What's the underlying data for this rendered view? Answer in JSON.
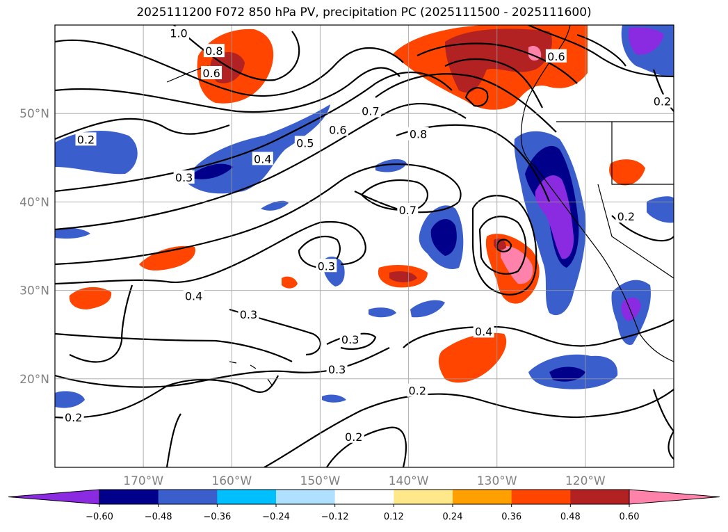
{
  "chart_data": {
    "type": "map",
    "title": "2025111200 F072 850 hPa PV, precipitation PC (2025111500 - 2025111600)",
    "xlim": [
      -180,
      -110
    ],
    "ylim": [
      10,
      60
    ],
    "lon_ticks": [
      {
        "value": -170,
        "label": "170°W"
      },
      {
        "value": -160,
        "label": "160°W"
      },
      {
        "value": -150,
        "label": "150°W"
      },
      {
        "value": -140,
        "label": "140°W"
      },
      {
        "value": -130,
        "label": "130°W"
      },
      {
        "value": -120,
        "label": "120°W"
      }
    ],
    "lat_ticks": [
      {
        "value": 20,
        "label": "20°N"
      },
      {
        "value": 30,
        "label": "30°N"
      },
      {
        "value": 40,
        "label": "40°N"
      },
      {
        "value": 50,
        "label": "50°N"
      }
    ],
    "grid": true,
    "colorbar": {
      "orientation": "horizontal",
      "extend": "both",
      "levels": [
        -0.6,
        -0.48,
        -0.36,
        -0.24,
        -0.12,
        0.12,
        0.24,
        0.36,
        0.48,
        0.6
      ],
      "tick_labels": [
        "−0.60",
        "−0.48",
        "−0.36",
        "−0.24",
        "−0.12",
        "0.12",
        "0.24",
        "0.36",
        "0.48",
        "0.60"
      ],
      "colors": [
        "#8a2be2",
        "#00008b",
        "#3a5fcd",
        "#00bfff",
        "#b0e0ff",
        "#ffffff",
        "#ffe88a",
        "#ff9f00",
        "#ff4500",
        "#b22222",
        "#ff82ab"
      ]
    },
    "contour_labels": [
      {
        "text": "1.0",
        "lon": -166,
        "lat": 59
      },
      {
        "text": "0.8",
        "lon": -162,
        "lat": 57
      },
      {
        "text": "0.6",
        "lon": -162.3,
        "lat": 54.5
      },
      {
        "text": "0.6",
        "lon": -123.3,
        "lat": 56.4
      },
      {
        "text": "0.2",
        "lon": -111.3,
        "lat": 51.3
      },
      {
        "text": "0.2",
        "lon": -176.5,
        "lat": 47
      },
      {
        "text": "0.4",
        "lon": -156.5,
        "lat": 44.8
      },
      {
        "text": "0.5",
        "lon": -151.7,
        "lat": 46.6
      },
      {
        "text": "0.6",
        "lon": -148,
        "lat": 48.1
      },
      {
        "text": "0.7",
        "lon": -144.3,
        "lat": 50.2
      },
      {
        "text": "0.8",
        "lon": -138.9,
        "lat": 47.6
      },
      {
        "text": "0.3",
        "lon": -165.4,
        "lat": 42.7
      },
      {
        "text": "0.7",
        "lon": -140.1,
        "lat": 39
      },
      {
        "text": "0.3",
        "lon": -149.3,
        "lat": 32.7
      },
      {
        "text": "0.4",
        "lon": -164.3,
        "lat": 29.3
      },
      {
        "text": "0.2",
        "lon": -115.4,
        "lat": 38.3
      },
      {
        "text": "0.3",
        "lon": -158.1,
        "lat": 27.2
      },
      {
        "text": "0.3",
        "lon": -146.6,
        "lat": 24.4
      },
      {
        "text": "0.4",
        "lon": -131.5,
        "lat": 25.3
      },
      {
        "text": "0.3",
        "lon": -148.1,
        "lat": 21
      },
      {
        "text": "0.2",
        "lon": -139,
        "lat": 18.6
      },
      {
        "text": "0.2",
        "lon": -177.9,
        "lat": 15.6
      },
      {
        "text": "0.2",
        "lon": -146.2,
        "lat": 13.4
      }
    ]
  }
}
